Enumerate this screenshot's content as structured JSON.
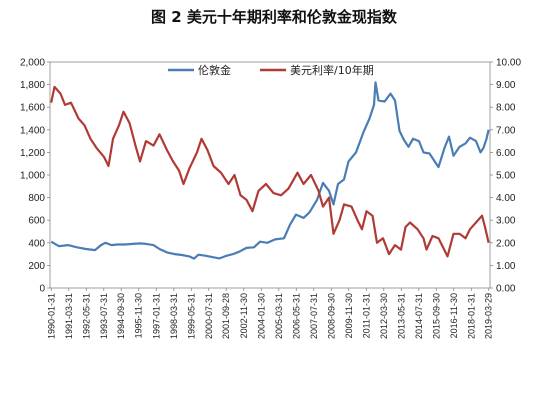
{
  "chart_data": {
    "type": "line",
    "title": "图 2 美元十年期利率和伦敦金现指数",
    "legend_position": "top",
    "grid": false,
    "x_categories": [
      "1990-01-31",
      "1991-03-31",
      "1992-05-31",
      "1993-07-31",
      "1994-09-30",
      "1995-11-30",
      "1997-01-31",
      "1998-03-31",
      "1999-05-31",
      "2000-07-31",
      "2001-09-28",
      "2002-11-30",
      "2004-01-30",
      "2005-03-31",
      "2006-05-31",
      "2007-07-31",
      "2008-09-30",
      "2009-11-30",
      "2011-01-31",
      "2012-03-30",
      "2013-05-31",
      "2014-07-31",
      "2015-09-30",
      "2016-11-30",
      "2018-01-31",
      "2019-03-29"
    ],
    "y_left": {
      "ticks": [
        "0",
        "200",
        "400",
        "600",
        "800",
        "1,000",
        "1,200",
        "1,400",
        "1,600",
        "1,800",
        "2,000"
      ],
      "ylim": [
        0,
        2000
      ]
    },
    "y_right": {
      "ticks": [
        "0.00",
        "1.00",
        "2.00",
        "3.00",
        "4.00",
        "5.00",
        "6.00",
        "7.00",
        "8.00",
        "9.00",
        "10.00"
      ],
      "ylim": [
        0,
        10
      ]
    },
    "series": [
      {
        "name": "伦敦金",
        "axis": "left",
        "color": "#4a7db5",
        "points": [
          [
            1990.08,
            410
          ],
          [
            1990.6,
            370
          ],
          [
            1991.2,
            380
          ],
          [
            1991.8,
            360
          ],
          [
            1992.4,
            345
          ],
          [
            1993.0,
            335
          ],
          [
            1993.4,
            380
          ],
          [
            1993.7,
            400
          ],
          [
            1994.1,
            380
          ],
          [
            1994.5,
            385
          ],
          [
            1995.0,
            385
          ],
          [
            1995.5,
            390
          ],
          [
            1996.0,
            395
          ],
          [
            1996.4,
            390
          ],
          [
            1996.9,
            380
          ],
          [
            1997.3,
            345
          ],
          [
            1997.8,
            315
          ],
          [
            1998.3,
            300
          ],
          [
            1998.8,
            292
          ],
          [
            1999.3,
            280
          ],
          [
            1999.6,
            260
          ],
          [
            1999.9,
            295
          ],
          [
            2000.4,
            285
          ],
          [
            2000.9,
            272
          ],
          [
            2001.3,
            262
          ],
          [
            2001.7,
            282
          ],
          [
            2002.2,
            300
          ],
          [
            2002.6,
            320
          ],
          [
            2003.1,
            355
          ],
          [
            2003.6,
            360
          ],
          [
            2004.0,
            410
          ],
          [
            2004.5,
            400
          ],
          [
            2005.0,
            430
          ],
          [
            2005.6,
            440
          ],
          [
            2006.0,
            560
          ],
          [
            2006.4,
            650
          ],
          [
            2006.9,
            620
          ],
          [
            2007.3,
            670
          ],
          [
            2007.8,
            780
          ],
          [
            2008.2,
            930
          ],
          [
            2008.6,
            860
          ],
          [
            2008.9,
            740
          ],
          [
            2009.2,
            920
          ],
          [
            2009.6,
            960
          ],
          [
            2009.9,
            1120
          ],
          [
            2010.4,
            1200
          ],
          [
            2010.9,
            1380
          ],
          [
            2011.3,
            1500
          ],
          [
            2011.6,
            1620
          ],
          [
            2011.7,
            1820
          ],
          [
            2011.9,
            1660
          ],
          [
            2012.3,
            1650
          ],
          [
            2012.7,
            1720
          ],
          [
            2013.0,
            1660
          ],
          [
            2013.3,
            1390
          ],
          [
            2013.6,
            1310
          ],
          [
            2013.9,
            1250
          ],
          [
            2014.2,
            1320
          ],
          [
            2014.6,
            1300
          ],
          [
            2014.9,
            1200
          ],
          [
            2015.3,
            1190
          ],
          [
            2015.7,
            1110
          ],
          [
            2015.9,
            1070
          ],
          [
            2016.3,
            1240
          ],
          [
            2016.6,
            1340
          ],
          [
            2016.9,
            1170
          ],
          [
            2017.3,
            1250
          ],
          [
            2017.7,
            1280
          ],
          [
            2018.0,
            1330
          ],
          [
            2018.4,
            1300
          ],
          [
            2018.7,
            1200
          ],
          [
            2018.9,
            1240
          ],
          [
            2019.1,
            1320
          ],
          [
            2019.24,
            1400
          ]
        ]
      },
      {
        "name": "美元利率/10年期",
        "axis": "right",
        "color": "#b03a35",
        "points": [
          [
            1990.08,
            8.2
          ],
          [
            1990.3,
            8.9
          ],
          [
            1990.7,
            8.6
          ],
          [
            1991.0,
            8.1
          ],
          [
            1991.4,
            8.2
          ],
          [
            1991.9,
            7.5
          ],
          [
            1992.3,
            7.2
          ],
          [
            1992.7,
            6.6
          ],
          [
            1993.1,
            6.2
          ],
          [
            1993.6,
            5.8
          ],
          [
            1993.9,
            5.4
          ],
          [
            1994.2,
            6.6
          ],
          [
            1994.6,
            7.2
          ],
          [
            1994.9,
            7.8
          ],
          [
            1995.3,
            7.3
          ],
          [
            1995.7,
            6.3
          ],
          [
            1996.0,
            5.6
          ],
          [
            1996.4,
            6.5
          ],
          [
            1996.9,
            6.3
          ],
          [
            1997.3,
            6.8
          ],
          [
            1997.8,
            6.1
          ],
          [
            1998.2,
            5.6
          ],
          [
            1998.6,
            5.2
          ],
          [
            1998.9,
            4.6
          ],
          [
            1999.3,
            5.3
          ],
          [
            1999.8,
            6.0
          ],
          [
            2000.1,
            6.6
          ],
          [
            2000.5,
            6.1
          ],
          [
            2000.9,
            5.4
          ],
          [
            2001.4,
            5.1
          ],
          [
            2001.9,
            4.6
          ],
          [
            2002.3,
            5.0
          ],
          [
            2002.7,
            4.1
          ],
          [
            2003.1,
            3.9
          ],
          [
            2003.5,
            3.4
          ],
          [
            2003.9,
            4.3
          ],
          [
            2004.4,
            4.6
          ],
          [
            2004.9,
            4.2
          ],
          [
            2005.4,
            4.1
          ],
          [
            2005.9,
            4.4
          ],
          [
            2006.5,
            5.1
          ],
          [
            2006.9,
            4.6
          ],
          [
            2007.4,
            5.0
          ],
          [
            2007.9,
            4.3
          ],
          [
            2008.2,
            3.6
          ],
          [
            2008.6,
            4.0
          ],
          [
            2008.9,
            2.4
          ],
          [
            2009.3,
            3.0
          ],
          [
            2009.6,
            3.7
          ],
          [
            2010.1,
            3.6
          ],
          [
            2010.5,
            3.0
          ],
          [
            2010.8,
            2.6
          ],
          [
            2011.1,
            3.4
          ],
          [
            2011.5,
            3.2
          ],
          [
            2011.8,
            2.0
          ],
          [
            2012.2,
            2.2
          ],
          [
            2012.6,
            1.5
          ],
          [
            2013.0,
            1.9
          ],
          [
            2013.4,
            1.7
          ],
          [
            2013.7,
            2.7
          ],
          [
            2014.0,
            2.9
          ],
          [
            2014.5,
            2.6
          ],
          [
            2014.9,
            2.2
          ],
          [
            2015.1,
            1.7
          ],
          [
            2015.5,
            2.3
          ],
          [
            2015.9,
            2.2
          ],
          [
            2016.2,
            1.8
          ],
          [
            2016.5,
            1.4
          ],
          [
            2016.9,
            2.4
          ],
          [
            2017.3,
            2.4
          ],
          [
            2017.7,
            2.2
          ],
          [
            2018.0,
            2.6
          ],
          [
            2018.4,
            2.9
          ],
          [
            2018.8,
            3.2
          ],
          [
            2019.0,
            2.7
          ],
          [
            2019.24,
            2.0
          ]
        ]
      }
    ]
  }
}
